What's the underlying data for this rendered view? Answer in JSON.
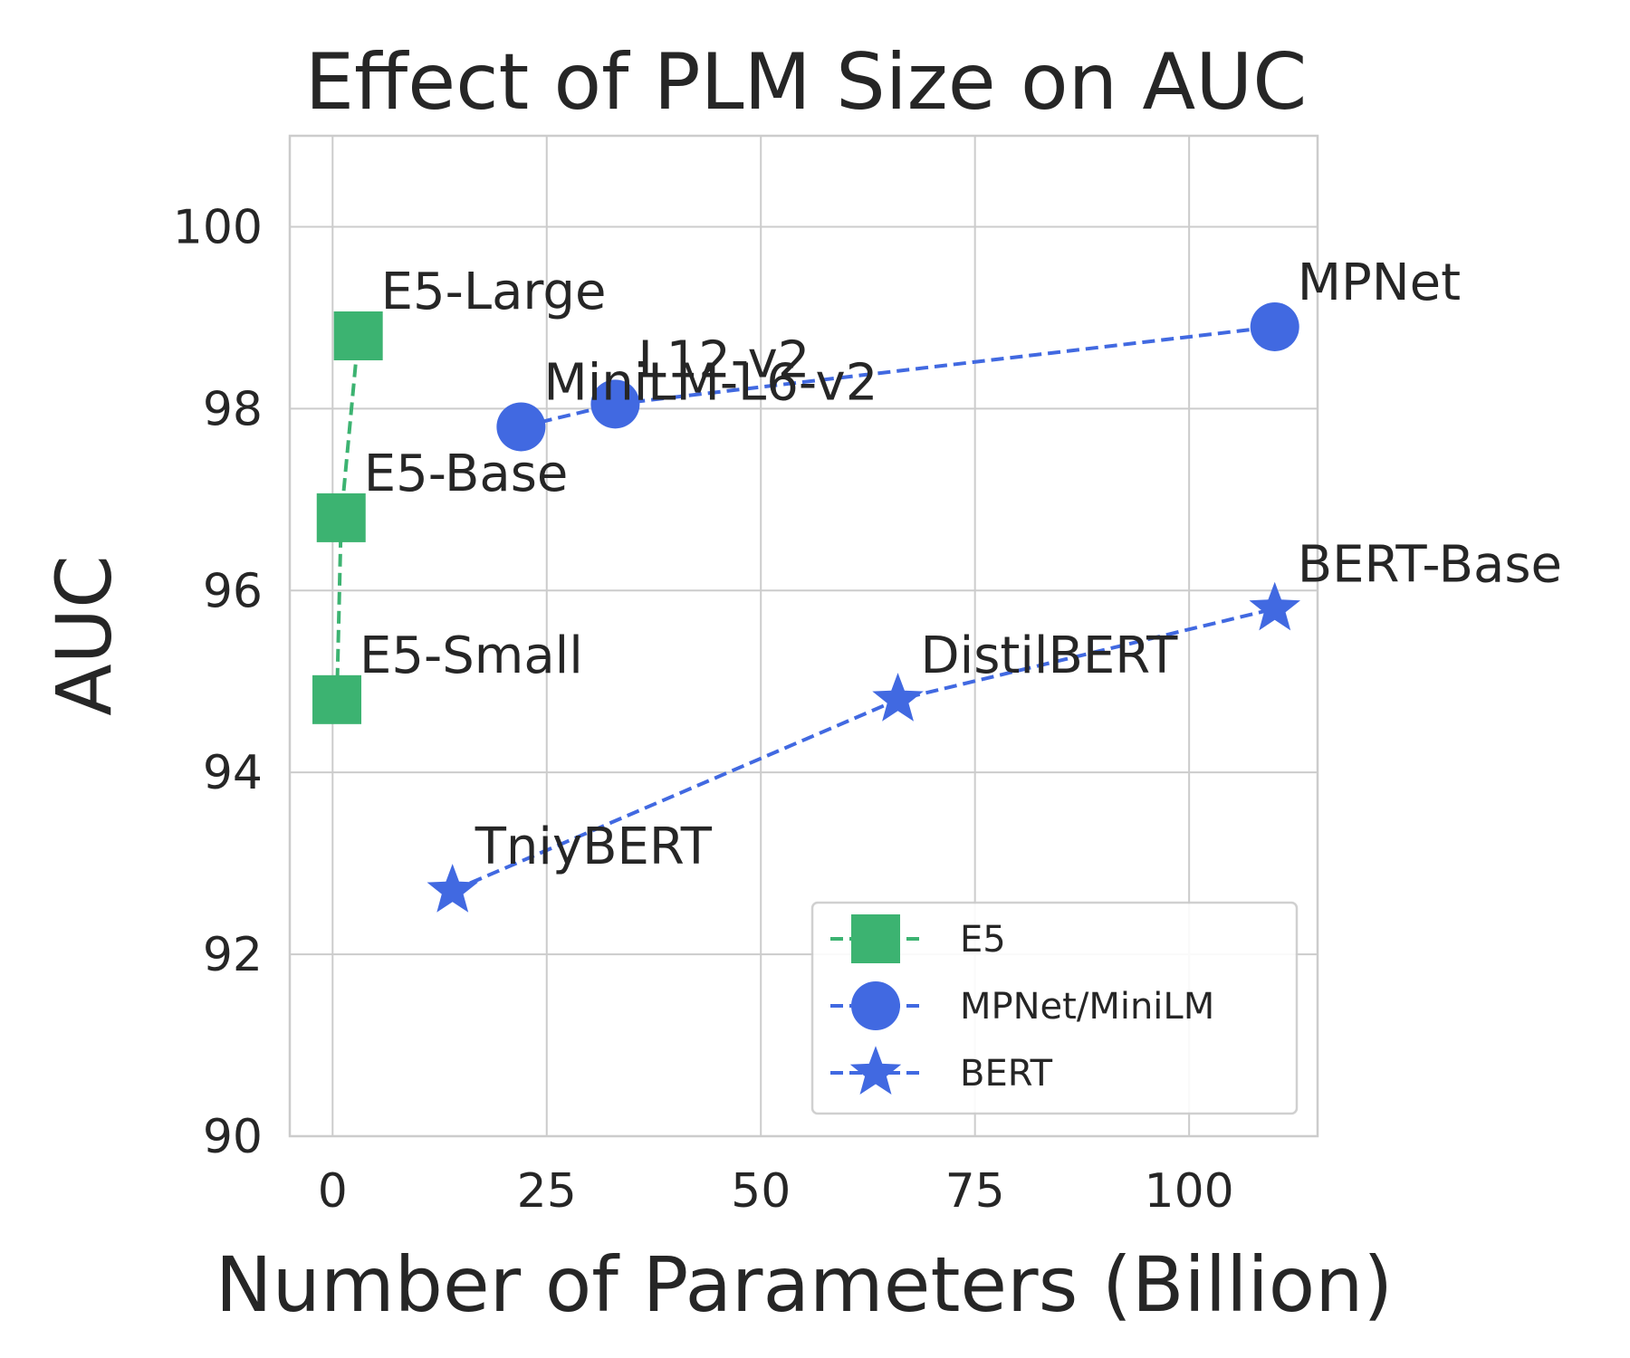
{
  "chart_data": {
    "type": "line",
    "title": "Effect of PLM Size on AUC",
    "xlabel": "Number of Parameters (Billion)",
    "ylabel": "AUC",
    "xlim": [
      -5,
      115
    ],
    "ylim": [
      90,
      101
    ],
    "xticks": [
      0,
      25,
      50,
      75,
      100
    ],
    "yticks": [
      90,
      92,
      94,
      96,
      98,
      100
    ],
    "grid": true,
    "legend_position": "lower-right",
    "series": [
      {
        "name": "E5",
        "marker": "square",
        "line_style": "dashed",
        "color": "#3cb371",
        "points": [
          {
            "x": 0.5,
            "y": 94.8,
            "label": "E5-Small"
          },
          {
            "x": 1.0,
            "y": 96.8,
            "label": "E5-Base"
          },
          {
            "x": 3.0,
            "y": 98.8,
            "label": "E5-Large"
          }
        ]
      },
      {
        "name": "MPNet/MiniLM",
        "marker": "circle",
        "line_style": "dashed",
        "color": "#4169e1",
        "points": [
          {
            "x": 22,
            "y": 97.8,
            "label": "MiniLM-L6-v2"
          },
          {
            "x": 33,
            "y": 98.05,
            "label": "L12-v2"
          },
          {
            "x": 110,
            "y": 98.9,
            "label": "MPNet"
          }
        ]
      },
      {
        "name": "BERT",
        "marker": "star",
        "line_style": "dashed",
        "color": "#4169e1",
        "points": [
          {
            "x": 14,
            "y": 92.7,
            "label": "TniyBERT"
          },
          {
            "x": 66,
            "y": 94.8,
            "label": "DistilBERT"
          },
          {
            "x": 110,
            "y": 95.8,
            "label": "BERT-Base"
          }
        ]
      }
    ]
  }
}
